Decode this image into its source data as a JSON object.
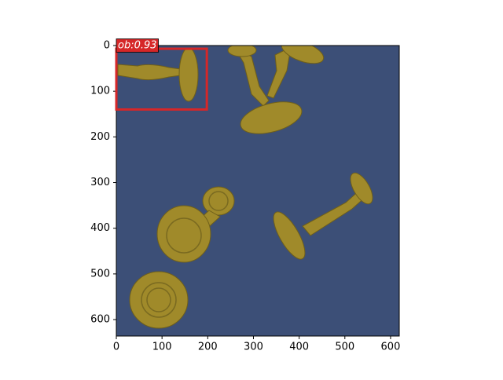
{
  "chart_data": {
    "type": "image",
    "xlim": [
      0,
      619
    ],
    "ylim": [
      636,
      0
    ],
    "xticks": [
      0,
      100,
      200,
      300,
      400,
      500,
      600
    ],
    "yticks": [
      0,
      100,
      200,
      300,
      400,
      500,
      600
    ],
    "box": {
      "x0": 0,
      "y0": 7,
      "x1": 198,
      "y1": 140,
      "label": "ob:0.93",
      "color": "#d62728"
    }
  }
}
